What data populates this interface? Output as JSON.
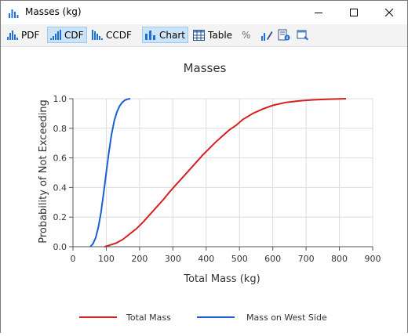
{
  "window": {
    "title": "Masses (kg)",
    "accent": "#1e6fd9"
  },
  "toolbar": {
    "pdf_label": "PDF",
    "cdf_label": "CDF",
    "ccdf_label": "CCDF",
    "chart_label": "Chart",
    "table_label": "Table",
    "percent_label": "%"
  },
  "chart_data": {
    "type": "line",
    "title": "Masses",
    "xlabel": "Total Mass (kg)",
    "ylabel": "Probability of Not Exceeding",
    "xlim": [
      0,
      900
    ],
    "ylim": [
      0,
      1
    ],
    "xticks": [
      "0",
      "100",
      "200",
      "300",
      "400",
      "500",
      "600",
      "700",
      "800",
      "900"
    ],
    "yticks": [
      "0.0",
      "0.2",
      "0.4",
      "0.6",
      "0.8",
      "1.0"
    ],
    "grid": true,
    "legend_position": "bottom",
    "series": [
      {
        "name": "Total Mass",
        "color": "#d42020",
        "x": [
          95,
          110,
          130,
          150,
          170,
          190,
          210,
          230,
          250,
          270,
          290,
          310,
          330,
          350,
          370,
          390,
          410,
          430,
          450,
          470,
          490,
          510,
          540,
          570,
          600,
          640,
          680,
          720,
          760,
          800,
          820
        ],
        "y": [
          0.0,
          0.01,
          0.025,
          0.05,
          0.085,
          0.12,
          0.165,
          0.215,
          0.265,
          0.315,
          0.37,
          0.42,
          0.47,
          0.52,
          0.57,
          0.62,
          0.665,
          0.71,
          0.75,
          0.79,
          0.82,
          0.86,
          0.9,
          0.93,
          0.955,
          0.975,
          0.985,
          0.992,
          0.996,
          0.999,
          1.0
        ]
      },
      {
        "name": "Mass on West Side",
        "color": "#1a5fd0",
        "x": [
          52,
          60,
          68,
          76,
          84,
          92,
          100,
          108,
          116,
          124,
          132,
          140,
          148,
          156,
          164,
          172
        ],
        "y": [
          0.0,
          0.02,
          0.06,
          0.13,
          0.23,
          0.36,
          0.5,
          0.64,
          0.76,
          0.85,
          0.91,
          0.95,
          0.975,
          0.99,
          0.997,
          1.0
        ]
      }
    ]
  }
}
